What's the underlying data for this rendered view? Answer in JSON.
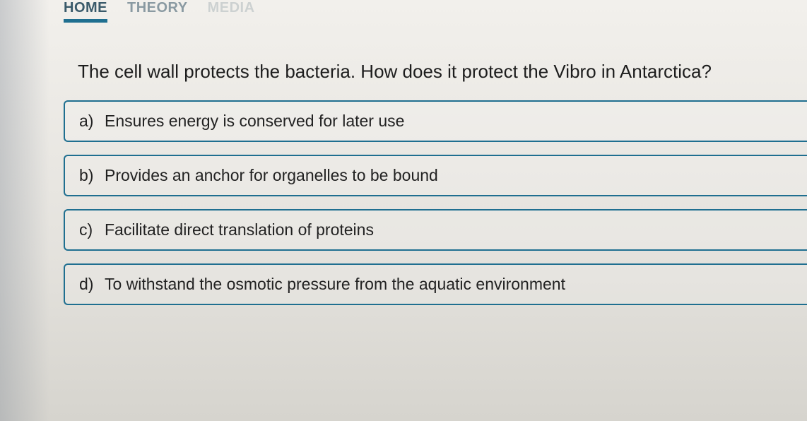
{
  "nav": {
    "items": [
      {
        "label": "HOME",
        "active": true
      },
      {
        "label": "THEORY",
        "active": false
      },
      {
        "label": "MEDIA",
        "active": false
      }
    ]
  },
  "question": "The cell wall protects the bacteria. How does it protect the Vibro in Antarctica?",
  "options": [
    {
      "letter": "a)",
      "text": "Ensures energy is conserved for later use"
    },
    {
      "letter": "b)",
      "text": "Provides an anchor for organelles to be bound"
    },
    {
      "letter": "c)",
      "text": "Facilitate direct translation of proteins"
    },
    {
      "letter": "d)",
      "text": "To withstand the osmotic pressure from the aquatic environment"
    }
  ],
  "colors": {
    "accent": "#1f6f90",
    "text": "#1d1d1d",
    "bg": "#e8e6e2"
  }
}
